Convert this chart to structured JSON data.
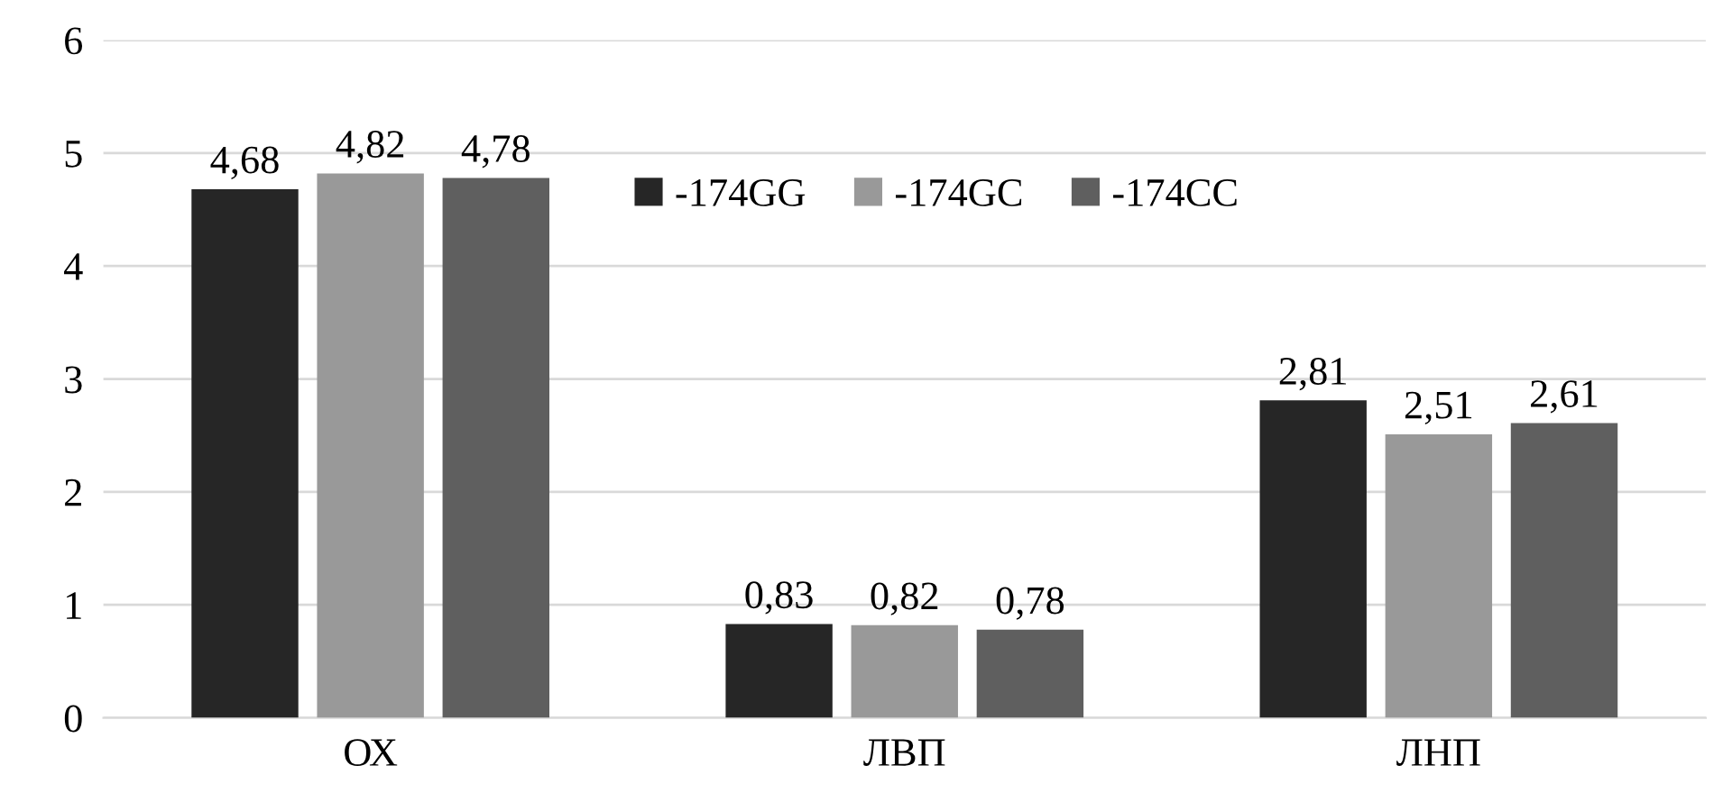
{
  "chart_data": {
    "type": "bar",
    "categories": [
      "ОХ",
      "ЛВП",
      "ЛНП"
    ],
    "series": [
      {
        "name": "-174GG",
        "color": "#262626",
        "values": [
          4.68,
          0.83,
          2.81
        ],
        "value_labels": [
          "4,68",
          "0,83",
          "2,81"
        ]
      },
      {
        "name": "-174GC",
        "color": "#999999",
        "values": [
          4.82,
          0.82,
          2.51
        ],
        "value_labels": [
          "4,82",
          "0,82",
          "2,51"
        ]
      },
      {
        "name": "-174CC",
        "color": "#5f5f5f",
        "values": [
          4.78,
          0.78,
          2.61
        ],
        "value_labels": [
          "4,78",
          "0,78",
          "2,61"
        ]
      }
    ],
    "ylim": [
      0,
      6
    ],
    "yticks": [
      0,
      1,
      2,
      3,
      4,
      5,
      6
    ],
    "grid": "y",
    "legend": "top right"
  }
}
